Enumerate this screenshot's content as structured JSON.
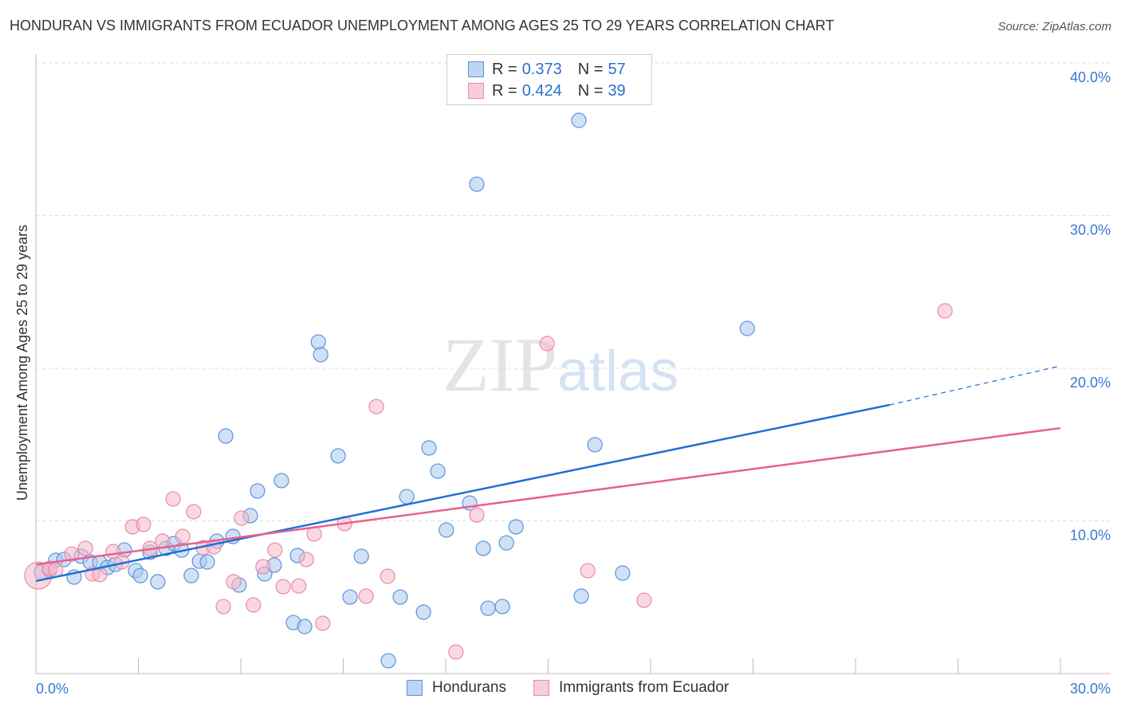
{
  "title": "HONDURAN VS IMMIGRANTS FROM ECUADOR UNEMPLOYMENT AMONG AGES 25 TO 29 YEARS CORRELATION CHART",
  "source": "Source: ZipAtlas.com",
  "watermark": "ZIPatlas",
  "legend": {
    "rows": [
      {
        "r_label": "R =",
        "r": "0.373",
        "n_label": "N =",
        "n": "57"
      },
      {
        "r_label": "R =",
        "r": "0.424",
        "n_label": "N =",
        "n": "39"
      }
    ]
  },
  "chart_data": {
    "type": "scatter",
    "title": "HONDURAN VS IMMIGRANTS FROM ECUADOR UNEMPLOYMENT AMONG AGES 25 TO 29 YEARS CORRELATION CHART",
    "xlabel": "",
    "ylabel": "Unemployment Among Ages 25 to 29 years",
    "xlim": [
      0,
      30
    ],
    "ylim": [
      0,
      40
    ],
    "x_tick_labels": [
      "0.0%",
      "30.0%"
    ],
    "y_ticks": [
      10,
      20,
      30,
      40
    ],
    "y_tick_labels": [
      "10.0%",
      "20.0%",
      "30.0%",
      "40.0%"
    ],
    "grid": true,
    "legend_position": "top-center",
    "series": [
      {
        "name": "Hondurans",
        "color": "#5b93db",
        "fill": "#a9c8ef",
        "line_color": "#1f6fd6",
        "trend": {
          "x0": 0,
          "y0": 6.06,
          "x1": 25,
          "y1": 17.6,
          "x_dash_end": 29.9,
          "y_dash_end": 20.1
        },
        "points": [
          [
            0.16,
            6.63
          ],
          [
            0.4,
            6.79
          ],
          [
            0.58,
            7.42
          ],
          [
            0.82,
            7.47
          ],
          [
            1.12,
            6.32
          ],
          [
            1.33,
            7.68
          ],
          [
            1.59,
            7.31
          ],
          [
            1.87,
            7.26
          ],
          [
            2.1,
            6.95
          ],
          [
            2.33,
            7.15
          ],
          [
            2.59,
            8.09
          ],
          [
            2.92,
            6.74
          ],
          [
            3.06,
            6.42
          ],
          [
            3.34,
            7.94
          ],
          [
            3.57,
            6.01
          ],
          [
            3.81,
            8.2
          ],
          [
            4.04,
            8.51
          ],
          [
            4.27,
            8.09
          ],
          [
            4.55,
            6.42
          ],
          [
            4.79,
            7.36
          ],
          [
            5.02,
            7.31
          ],
          [
            5.3,
            8.67
          ],
          [
            5.56,
            15.56
          ],
          [
            5.77,
            8.98
          ],
          [
            5.95,
            5.8
          ],
          [
            6.28,
            10.34
          ],
          [
            6.49,
            11.96
          ],
          [
            6.7,
            6.53
          ],
          [
            6.98,
            7.1
          ],
          [
            7.19,
            12.64
          ],
          [
            7.54,
            3.34
          ],
          [
            7.66,
            7.73
          ],
          [
            7.87,
            3.08
          ],
          [
            8.27,
            21.72
          ],
          [
            8.34,
            20.89
          ],
          [
            8.85,
            14.26
          ],
          [
            9.2,
            5.01
          ],
          [
            9.53,
            7.68
          ],
          [
            10.32,
            0.84
          ],
          [
            10.67,
            5.01
          ],
          [
            10.86,
            11.59
          ],
          [
            11.35,
            4.02
          ],
          [
            11.51,
            14.78
          ],
          [
            11.77,
            13.26
          ],
          [
            12.02,
            9.4
          ],
          [
            12.7,
            11.17
          ],
          [
            12.91,
            32.06
          ],
          [
            13.1,
            8.2
          ],
          [
            13.24,
            4.28
          ],
          [
            13.66,
            4.39
          ],
          [
            13.78,
            8.56
          ],
          [
            14.06,
            9.61
          ],
          [
            15.9,
            36.24
          ],
          [
            15.97,
            5.07
          ],
          [
            16.37,
            14.99
          ],
          [
            17.18,
            6.58
          ],
          [
            20.83,
            22.61
          ]
        ]
      },
      {
        "name": "Immigrants from Ecuador",
        "color": "#e98aa5",
        "fill": "#f5b8c9",
        "line_color": "#e8608f",
        "trend": {
          "x0": 0,
          "y0": 7.15,
          "x1": 30,
          "y1": 16.08
        },
        "points": [
          [
            0.07,
            6.42
          ],
          [
            0.4,
            6.89
          ],
          [
            0.58,
            6.79
          ],
          [
            1.05,
            7.83
          ],
          [
            1.45,
            8.2
          ],
          [
            1.66,
            6.53
          ],
          [
            1.87,
            6.48
          ],
          [
            2.26,
            7.99
          ],
          [
            2.52,
            7.31
          ],
          [
            2.83,
            9.61
          ],
          [
            3.15,
            9.77
          ],
          [
            3.34,
            8.2
          ],
          [
            3.71,
            8.67
          ],
          [
            4.02,
            11.44
          ],
          [
            4.3,
            8.98
          ],
          [
            4.62,
            10.6
          ],
          [
            4.9,
            8.25
          ],
          [
            5.21,
            8.3
          ],
          [
            5.49,
            4.39
          ],
          [
            5.79,
            6.01
          ],
          [
            6.02,
            10.18
          ],
          [
            6.37,
            4.49
          ],
          [
            6.65,
            7.0
          ],
          [
            7.0,
            8.09
          ],
          [
            7.24,
            5.69
          ],
          [
            7.7,
            5.74
          ],
          [
            7.92,
            7.47
          ],
          [
            8.15,
            9.14
          ],
          [
            8.4,
            3.29
          ],
          [
            9.04,
            9.82
          ],
          [
            9.67,
            5.07
          ],
          [
            9.97,
            17.49
          ],
          [
            10.3,
            6.37
          ],
          [
            12.3,
            1.41
          ],
          [
            12.91,
            10.39
          ],
          [
            14.97,
            21.62
          ],
          [
            16.16,
            6.74
          ],
          [
            17.81,
            4.8
          ],
          [
            26.62,
            23.76
          ]
        ]
      }
    ]
  }
}
